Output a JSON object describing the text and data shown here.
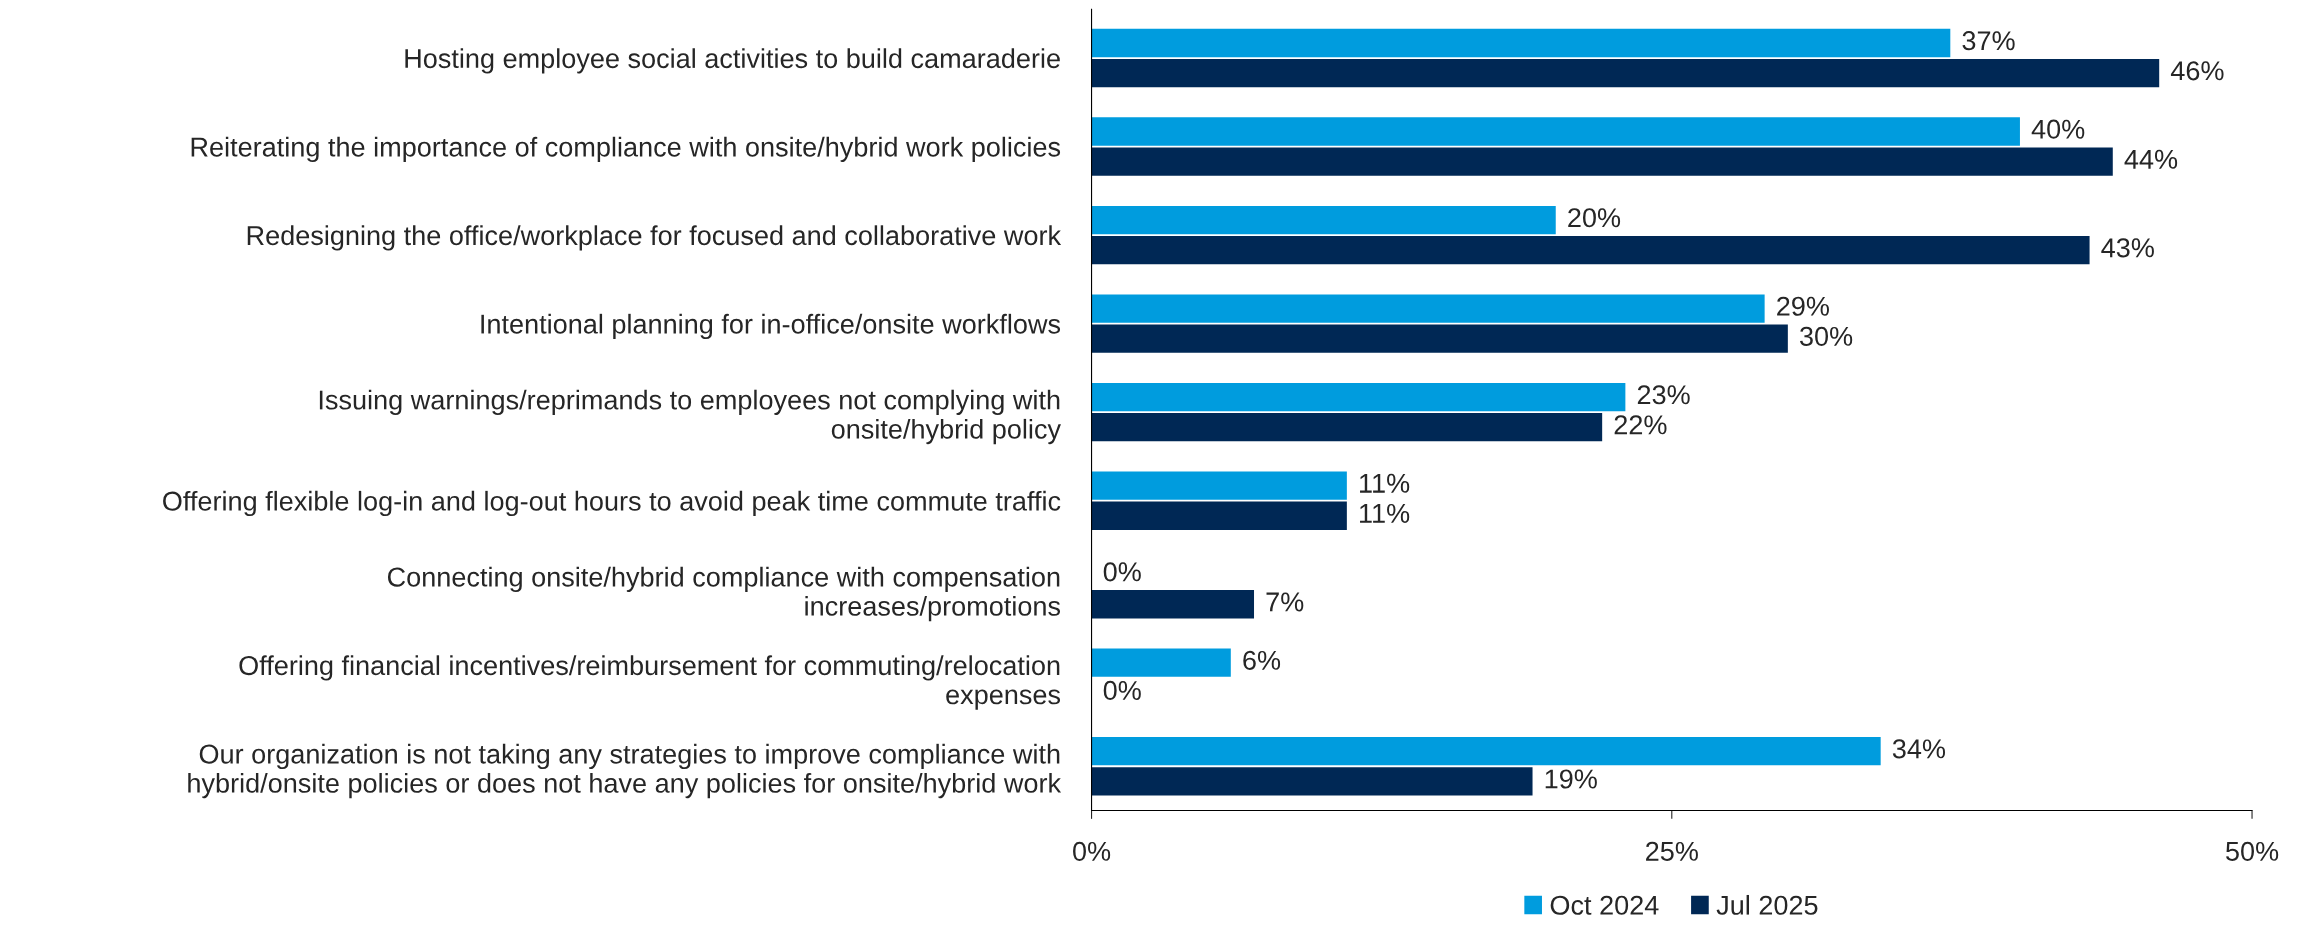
{
  "chart_data": {
    "type": "bar",
    "orientation": "horizontal",
    "categories": [
      "Hosting employee social activities to build camaraderie",
      "Reiterating the importance of compliance with onsite/hybrid work policies",
      "Redesigning the office/workplace for focused and collaborative work",
      "Intentional planning for in-office/onsite workflows",
      "Issuing warnings/reprimands to employees not complying with\nonsite/hybrid policy",
      "Offering flexible log-in and log-out hours to avoid peak time commute traffic",
      "Connecting onsite/hybrid compliance with compensation\nincreases/promotions",
      "Offering financial incentives/reimbursement for commuting/relocation\nexpenses",
      "Our organization is not taking any strategies to improve compliance with\nhybrid/onsite policies or does not have any policies for onsite/hybrid work"
    ],
    "series": [
      {
        "name": "Oct 2024",
        "color": "#009cde",
        "values": [
          37,
          40,
          20,
          29,
          23,
          11,
          0,
          6,
          34
        ],
        "value_labels": [
          "37%",
          "40%",
          "20%",
          "29%",
          "23%",
          "11%",
          "0%",
          "6%",
          "34%"
        ]
      },
      {
        "name": "Jul 2025",
        "color": "#002855",
        "values": [
          46,
          44,
          43,
          30,
          22,
          11,
          7,
          0,
          19
        ],
        "value_labels": [
          "46%",
          "44%",
          "43%",
          "30%",
          "22%",
          "11%",
          "7%",
          "0%",
          "19%"
        ]
      }
    ],
    "xlim": [
      0,
      50
    ],
    "xticks": [
      {
        "value": 0,
        "label": "0%"
      },
      {
        "value": 25,
        "label": "25%"
      },
      {
        "value": 50,
        "label": "50%"
      }
    ],
    "grid": false,
    "legend": "bottom"
  }
}
